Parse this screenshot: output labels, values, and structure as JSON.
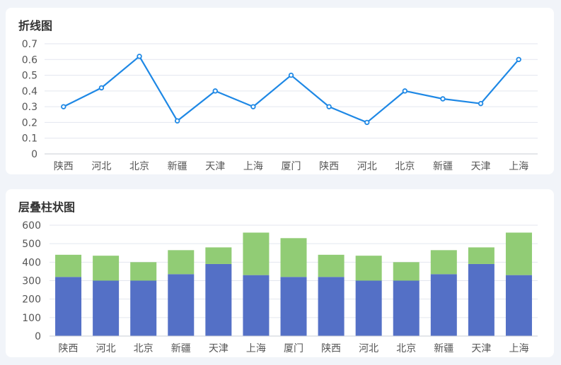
{
  "line_card": {
    "title": "折线图"
  },
  "bar_card": {
    "title": "层叠柱状图"
  },
  "colors": {
    "line": "#1e88e5",
    "bar_bottom": "#5470c6",
    "bar_top": "#91cc75",
    "grid": "#e3e6ef",
    "background": "#f1f4f9"
  },
  "chart_data": [
    {
      "type": "line",
      "title": "折线图",
      "categories": [
        "陕西",
        "河北",
        "北京",
        "新疆",
        "天津",
        "上海",
        "厦门",
        "陕西",
        "河北",
        "北京",
        "新疆",
        "天津",
        "上海"
      ],
      "series": [
        {
          "values": [
            0.3,
            0.42,
            0.62,
            0.21,
            0.4,
            0.3,
            0.5,
            0.3,
            0.2,
            0.4,
            0.35,
            0.32,
            0.6
          ]
        }
      ],
      "yticks": [
        "0",
        "0.1",
        "0.2",
        "0.3",
        "0.4",
        "0.5",
        "0.6",
        "0.7"
      ],
      "ylim": [
        0,
        0.7
      ],
      "grid": true
    },
    {
      "type": "bar",
      "stacked": true,
      "title": "层叠柱状图",
      "categories": [
        "陕西",
        "河北",
        "北京",
        "新疆",
        "天津",
        "上海",
        "厦门",
        "陕西",
        "河北",
        "北京",
        "新疆",
        "天津",
        "上海"
      ],
      "series": [
        {
          "values": [
            320,
            300,
            300,
            335,
            390,
            330,
            320,
            320,
            300,
            300,
            335,
            390,
            330
          ]
        },
        {
          "values": [
            120,
            135,
            100,
            130,
            90,
            230,
            210,
            120,
            135,
            100,
            130,
            90,
            230
          ]
        }
      ],
      "yticks": [
        "0",
        "100",
        "200",
        "300",
        "400",
        "500",
        "600"
      ],
      "ylim": [
        0,
        600
      ],
      "grid": true
    }
  ]
}
